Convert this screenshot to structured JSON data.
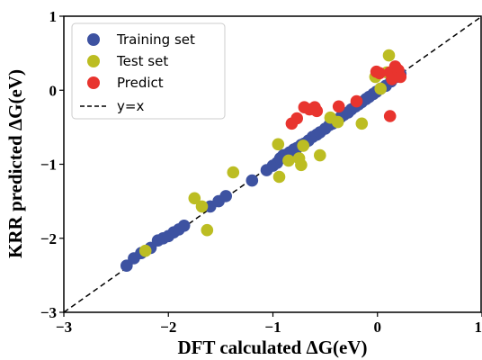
{
  "chart_data": {
    "type": "scatter",
    "xlabel": "DFT calculated ΔG(eV)",
    "ylabel": "KRR predicted ΔG(eV)",
    "xlim": [
      -3,
      1
    ],
    "ylim": [
      -3,
      1
    ],
    "xticks": [
      "−3",
      "−2",
      "−1",
      "0",
      "1"
    ],
    "yticks": [
      "−3",
      "−2",
      "−1",
      "0",
      "1"
    ],
    "grid": false,
    "legend_position": "top-left",
    "legend": [
      "Training set",
      "Test set",
      "Predict",
      "y=x"
    ],
    "reference_line": {
      "name": "y=x",
      "style": "dashed",
      "color": "#000000",
      "from": [
        -3,
        -3
      ],
      "to": [
        1,
        1
      ]
    },
    "series": [
      {
        "name": "Training set",
        "color": "#3d52a1",
        "points": [
          [
            -2.4,
            -2.37
          ],
          [
            -2.33,
            -2.27
          ],
          [
            -2.26,
            -2.2
          ],
          [
            -2.17,
            -2.13
          ],
          [
            -2.1,
            -2.03
          ],
          [
            -2.05,
            -2.0
          ],
          [
            -2.0,
            -1.97
          ],
          [
            -1.95,
            -1.92
          ],
          [
            -1.9,
            -1.88
          ],
          [
            -1.85,
            -1.83
          ],
          [
            -1.6,
            -1.57
          ],
          [
            -1.52,
            -1.5
          ],
          [
            -1.45,
            -1.43
          ],
          [
            -1.2,
            -1.22
          ],
          [
            -1.06,
            -1.08
          ],
          [
            -1.0,
            -1.02
          ],
          [
            -0.96,
            -0.98
          ],
          [
            -0.93,
            -0.92
          ],
          [
            -0.9,
            -0.88
          ],
          [
            -0.87,
            -0.87
          ],
          [
            -0.84,
            -0.84
          ],
          [
            -0.8,
            -0.8
          ],
          [
            -0.77,
            -0.78
          ],
          [
            -0.73,
            -0.74
          ],
          [
            -0.7,
            -0.72
          ],
          [
            -0.66,
            -0.68
          ],
          [
            -0.62,
            -0.63
          ],
          [
            -0.58,
            -0.6
          ],
          [
            -0.55,
            -0.57
          ],
          [
            -0.5,
            -0.52
          ],
          [
            -0.46,
            -0.47
          ],
          [
            -0.43,
            -0.45
          ],
          [
            -0.39,
            -0.4
          ],
          [
            -0.35,
            -0.36
          ],
          [
            -0.32,
            -0.33
          ],
          [
            -0.28,
            -0.3
          ],
          [
            -0.25,
            -0.26
          ],
          [
            -0.21,
            -0.22
          ],
          [
            -0.18,
            -0.19
          ],
          [
            -0.15,
            -0.16
          ],
          [
            -0.11,
            -0.12
          ],
          [
            -0.08,
            -0.09
          ],
          [
            -0.04,
            -0.05
          ],
          [
            -0.01,
            -0.02
          ],
          [
            0.03,
            0.02
          ],
          [
            0.08,
            0.06
          ],
          [
            0.13,
            0.12
          ],
          [
            0.18,
            0.18
          ],
          [
            0.22,
            0.22
          ]
        ]
      },
      {
        "name": "Test set",
        "color": "#bcbd22",
        "points": [
          [
            -2.22,
            -2.17
          ],
          [
            -1.75,
            -1.46
          ],
          [
            -1.68,
            -1.57
          ],
          [
            -1.63,
            -1.89
          ],
          [
            -1.38,
            -1.11
          ],
          [
            -0.95,
            -0.73
          ],
          [
            -0.94,
            -1.17
          ],
          [
            -0.85,
            -0.95
          ],
          [
            -0.75,
            -0.92
          ],
          [
            -0.73,
            -1.01
          ],
          [
            -0.71,
            -0.75
          ],
          [
            -0.55,
            -0.88
          ],
          [
            -0.45,
            -0.37
          ],
          [
            -0.38,
            -0.43
          ],
          [
            -0.15,
            -0.45
          ],
          [
            -0.02,
            0.18
          ],
          [
            0.03,
            0.02
          ],
          [
            0.09,
            0.24
          ],
          [
            0.11,
            0.47
          ]
        ]
      },
      {
        "name": "Predict",
        "color": "#e8342e",
        "points": [
          [
            -0.82,
            -0.45
          ],
          [
            -0.77,
            -0.38
          ],
          [
            -0.7,
            -0.23
          ],
          [
            -0.65,
            -0.26
          ],
          [
            -0.6,
            -0.23
          ],
          [
            -0.58,
            -0.28
          ],
          [
            -0.37,
            -0.22
          ],
          [
            -0.2,
            -0.15
          ],
          [
            -0.01,
            0.25
          ],
          [
            0.02,
            0.23
          ],
          [
            0.12,
            -0.35
          ],
          [
            0.12,
            0.24
          ],
          [
            0.14,
            0.15
          ],
          [
            0.17,
            0.32
          ],
          [
            0.2,
            0.27
          ],
          [
            0.22,
            0.18
          ]
        ]
      }
    ]
  }
}
